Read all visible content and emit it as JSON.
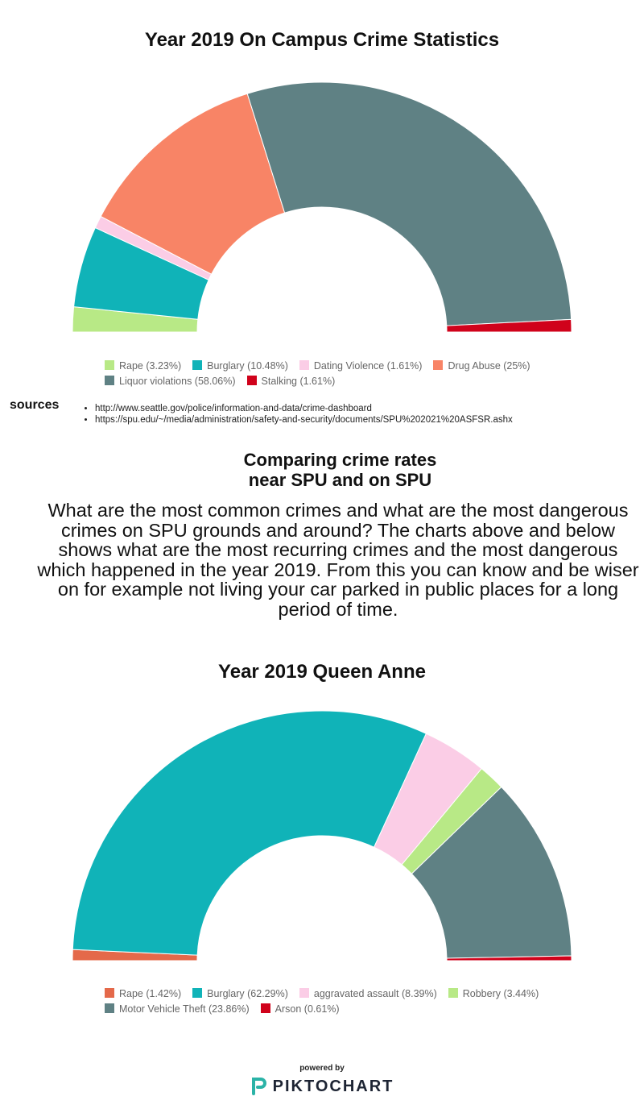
{
  "chart_data": [
    {
      "type": "pie",
      "variant": "semi-donut",
      "title": "Year 2019 On Campus Crime Statistics",
      "slices": [
        {
          "label": "Rape (3.23%)",
          "value": 3.23,
          "color": "#b8e986"
        },
        {
          "label": "Burglary (10.48%)",
          "value": 10.48,
          "color": "#10b3b8"
        },
        {
          "label": "Dating Violence (1.61%)",
          "value": 1.61,
          "color": "#fbcde6"
        },
        {
          "label": "Drug Abuse (25%)",
          "value": 25,
          "color": "#f88466"
        },
        {
          "label": "Liquor violations (58.06%)",
          "value": 58.06,
          "color": "#5f8184"
        },
        {
          "label": "Stalking (1.61%)",
          "value": 1.61,
          "color": "#d0021b"
        }
      ],
      "legend": "bottom"
    },
    {
      "type": "pie",
      "variant": "semi-donut",
      "title": "Year 2019 Queen Anne",
      "slices": [
        {
          "label": "Rape (1.42%)",
          "value": 1.42,
          "color": "#e4694a"
        },
        {
          "label": "Burglary (62.29%)",
          "value": 62.29,
          "color": "#10b3b8"
        },
        {
          "label": "aggravated assault (8.39%)",
          "value": 8.39,
          "color": "#fbcde6"
        },
        {
          "label": "Robbery (3.44%)",
          "value": 3.44,
          "color": "#b8e986"
        },
        {
          "label": "Motor Vehicle Theft (23.86%)",
          "value": 23.86,
          "color": "#5f8184"
        },
        {
          "label": "Arson (0.61%)",
          "value": 0.61,
          "color": "#d0021b"
        }
      ],
      "legend": "bottom"
    }
  ],
  "sources": {
    "label": "sources",
    "links": [
      "http://www.seattle.gov/police/information-and-data/crime-dashboard",
      "https://spu.edu/~/media/administration/safety-and-security/documents/SPU%202021%20ASFSR.ashx"
    ]
  },
  "subtitle_lines": [
    "Comparing crime rates",
    "near SPU and on SPU"
  ],
  "body_text": "What are the most common crimes and what are the most dangerous crimes on SPU grounds and around? The charts above and below shows what are the most recurring crimes and the most dangerous which happened in the year 2019. From this you can know and be wiser on for example not living your car parked in public places for a long period of time.",
  "footer": {
    "powered": "powered by",
    "brand": "PIKTOCHART"
  }
}
